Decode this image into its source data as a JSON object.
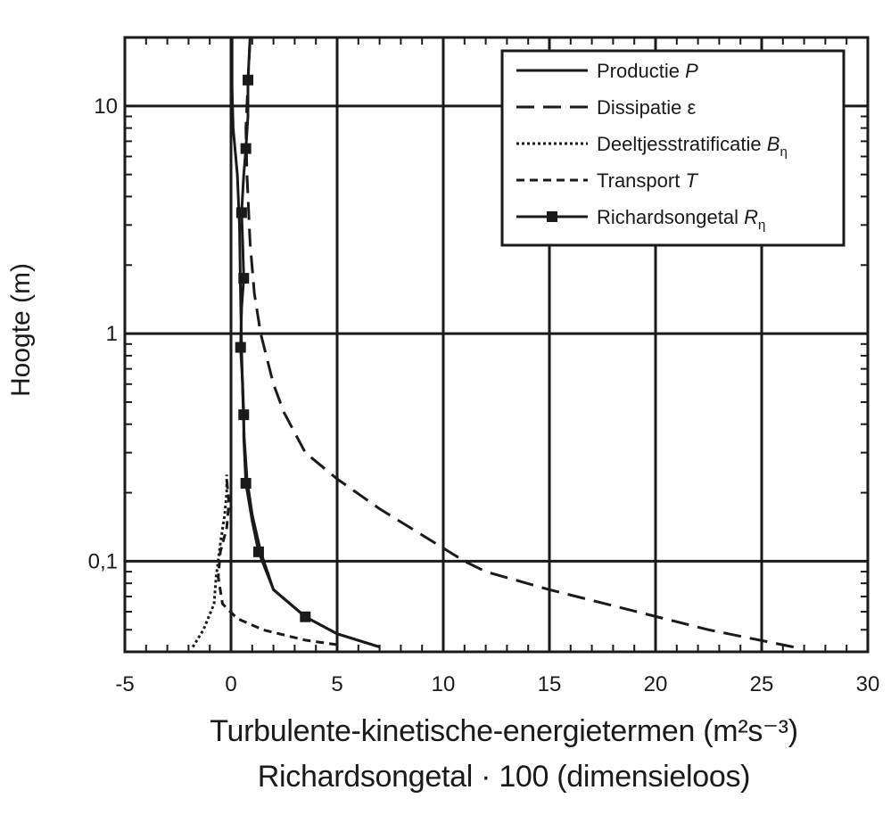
{
  "chart_data": {
    "type": "line",
    "xlabel_line1": "Turbulente-kinetische-energietermen (m²s⁻³)",
    "xlabel_line2": "Richardsongetal · 100 (dimensieloos)",
    "ylabel": "Hoogte (m)",
    "xlim": [
      -5,
      30
    ],
    "ylim": [
      0.04,
      20
    ],
    "yscale": "log",
    "x_ticks": [
      "-5",
      "0",
      "5",
      "10",
      "15",
      "20",
      "25",
      "30"
    ],
    "y_ticks": [
      "10",
      "1",
      "0,1"
    ],
    "grid": true,
    "legend_position": "top-right",
    "series": [
      {
        "name": "Productie",
        "symbol": "P",
        "style": "solid",
        "points": [
          [
            7.0,
            0.042
          ],
          [
            5.0,
            0.048
          ],
          [
            3.5,
            0.057
          ],
          [
            2.0,
            0.075
          ],
          [
            1.4,
            0.11
          ],
          [
            1.0,
            0.16
          ],
          [
            0.75,
            0.23
          ],
          [
            0.62,
            0.35
          ],
          [
            0.55,
            0.55
          ],
          [
            0.5,
            0.85
          ],
          [
            0.45,
            1.5
          ],
          [
            0.4,
            3.0
          ],
          [
            0.3,
            5.0
          ],
          [
            0.1,
            8.0
          ],
          [
            0.05,
            12.0
          ],
          [
            0.05,
            20.0
          ]
        ]
      },
      {
        "name": "Dissipatie",
        "symbol": "ε",
        "style": "dash",
        "points": [
          [
            26.5,
            0.042
          ],
          [
            22.5,
            0.05
          ],
          [
            15.0,
            0.075
          ],
          [
            12.0,
            0.09
          ],
          [
            11.0,
            0.1
          ],
          [
            7.0,
            0.17
          ],
          [
            5.0,
            0.23
          ],
          [
            3.5,
            0.3
          ],
          [
            2.5,
            0.45
          ],
          [
            2.0,
            0.6
          ],
          [
            1.4,
            1.0
          ],
          [
            1.1,
            1.5
          ],
          [
            0.9,
            2.5
          ],
          [
            0.75,
            5.0
          ],
          [
            0.7,
            8.0
          ],
          [
            0.9,
            20.0
          ]
        ]
      },
      {
        "name": "Deeltjesstratificatie",
        "symbol": "Bη",
        "style": "dot",
        "points": [
          [
            -1.8,
            0.042
          ],
          [
            -1.3,
            0.05
          ],
          [
            -0.8,
            0.065
          ],
          [
            -0.7,
            0.085
          ],
          [
            -0.5,
            0.12
          ],
          [
            -0.3,
            0.16
          ],
          [
            -0.2,
            0.2
          ],
          [
            -0.2,
            0.24
          ]
        ]
      },
      {
        "name": "Transport",
        "symbol": "T",
        "style": "shortdash",
        "points": [
          [
            5.0,
            0.043
          ],
          [
            3.5,
            0.045
          ],
          [
            1.5,
            0.05
          ],
          [
            0.3,
            0.056
          ],
          [
            -0.4,
            0.065
          ],
          [
            -0.6,
            0.085
          ],
          [
            -0.5,
            0.11
          ],
          [
            -0.2,
            0.14
          ],
          [
            -0.1,
            0.18
          ],
          [
            -0.2,
            0.23
          ]
        ]
      },
      {
        "name": "Richardsongetal",
        "symbol": "Rη",
        "style": "solid-square",
        "points": [
          [
            7.0,
            0.042
          ],
          [
            5.0,
            0.048
          ],
          [
            3.5,
            0.057
          ],
          [
            2.0,
            0.075
          ],
          [
            1.3,
            0.11
          ],
          [
            1.0,
            0.15
          ],
          [
            0.7,
            0.22
          ],
          [
            0.6,
            0.35
          ],
          [
            0.6,
            0.44
          ],
          [
            0.55,
            0.6
          ],
          [
            0.45,
            0.87
          ],
          [
            0.5,
            1.3
          ],
          [
            0.6,
            1.75
          ],
          [
            0.55,
            2.5
          ],
          [
            0.5,
            3.4
          ],
          [
            0.6,
            5.0
          ],
          [
            0.7,
            6.5
          ],
          [
            0.8,
            9.0
          ],
          [
            0.8,
            13.0
          ],
          [
            0.9,
            20.0
          ]
        ],
        "markers": [
          [
            3.5,
            0.057
          ],
          [
            1.3,
            0.11
          ],
          [
            0.7,
            0.22
          ],
          [
            0.6,
            0.44
          ],
          [
            0.45,
            0.87
          ],
          [
            0.6,
            1.75
          ],
          [
            0.5,
            3.4
          ],
          [
            0.7,
            6.5
          ],
          [
            0.8,
            13.0
          ]
        ]
      }
    ]
  }
}
